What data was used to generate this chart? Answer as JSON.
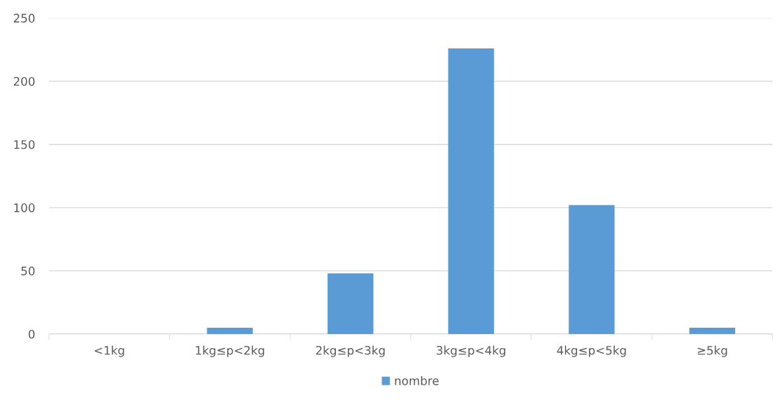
{
  "chart_data": {
    "type": "bar",
    "categories": [
      "<1kg",
      "1kg≤p<2kg",
      "2kg≤p<3kg",
      "3kg≤p<4kg",
      "4kg≤p<5kg",
      "≥5kg"
    ],
    "series": [
      {
        "name": "nombre",
        "color": "#5b9bd5",
        "values": [
          0,
          5,
          48,
          226,
          102,
          5
        ]
      }
    ],
    "ylim": [
      0,
      250
    ],
    "yticks": [
      0,
      50,
      100,
      150,
      200,
      250
    ],
    "grid": "y",
    "legend": "bottom"
  }
}
